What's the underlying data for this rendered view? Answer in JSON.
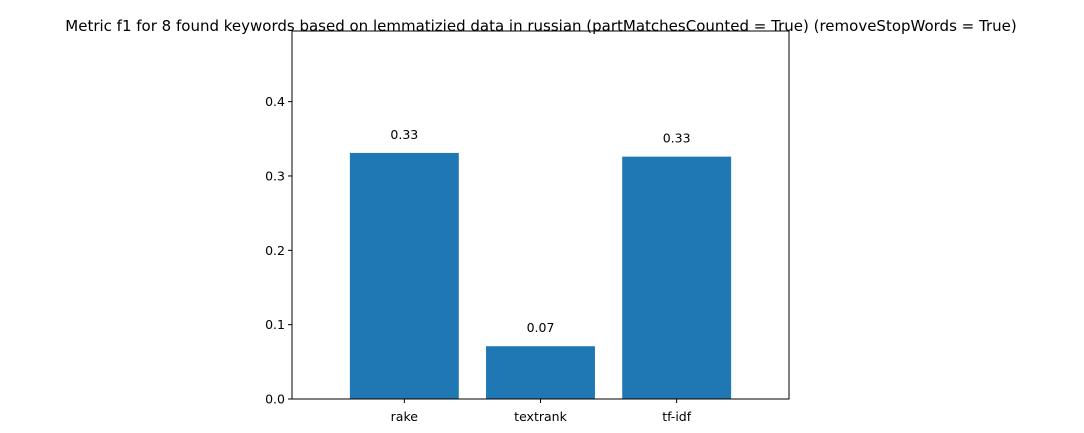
{
  "chart_data": {
    "type": "bar",
    "title": "Metric f1 for 8 found keywords based on lemmatizied data in russian (partMatchesCounted = True) (removeStopWords = True)",
    "xlabel": "",
    "ylabel": "",
    "categories": [
      "rake",
      "textrank",
      "tf-idf"
    ],
    "values": [
      0.331,
      0.071,
      0.326
    ],
    "data_labels": [
      "0.33",
      "0.07",
      "0.33"
    ],
    "ylim": [
      0,
      0.495
    ],
    "yticks": [
      0.0,
      0.1,
      0.2,
      0.3,
      0.4
    ],
    "ytick_labels": [
      "0.0",
      "0.1",
      "0.2",
      "0.3",
      "0.4"
    ],
    "bar_color": "#1f77b4",
    "grid": false,
    "legend": "none"
  }
}
